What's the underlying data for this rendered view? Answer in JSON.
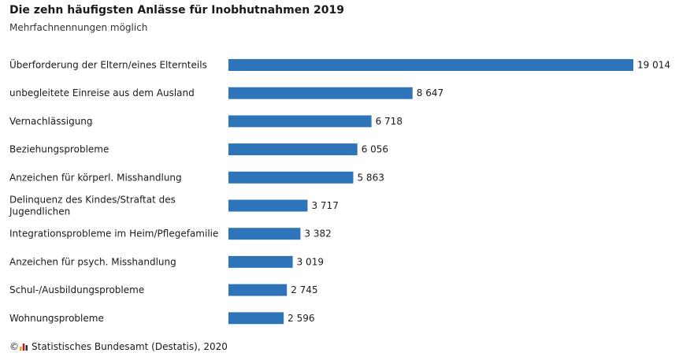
{
  "chart_data": {
    "type": "bar",
    "orientation": "horizontal",
    "title": "Die zehn häufigsten Anlässe für Inobhutnahmen 2019",
    "subtitle": "Mehrfachnennungen möglich",
    "categories": [
      "Überforderung der Eltern/eines Elternteils",
      "unbegleitete Einreise aus dem Ausland",
      "Vernachlässigung",
      "Beziehungsprobleme",
      "Anzeichen für körperl. Misshandlung",
      [
        "Delinquenz des Kindes/Straftat des",
        "Jugendlichen"
      ],
      "Integrationsprobleme im Heim/Pflegefamilie",
      "Anzeichen für psych. Misshandlung",
      "Schul-/Ausbildungsprobleme",
      "Wohnungsprobleme"
    ],
    "values": [
      19014,
      8647,
      6718,
      6056,
      5863,
      3717,
      3382,
      3019,
      2745,
      2596
    ],
    "value_labels": [
      "19 014",
      "8 647",
      "6 718",
      "6 056",
      "5 863",
      "3 717",
      "3 382",
      "3 019",
      "2 745",
      "2 596"
    ],
    "xlim": [
      0,
      19014
    ],
    "grid": false,
    "bar_color": "#2e74b9"
  },
  "footer": {
    "copyright": "©",
    "text": "Statistisches Bundesamt (Destatis), 2020",
    "logo_icon": "destatis-logo-icon"
  }
}
